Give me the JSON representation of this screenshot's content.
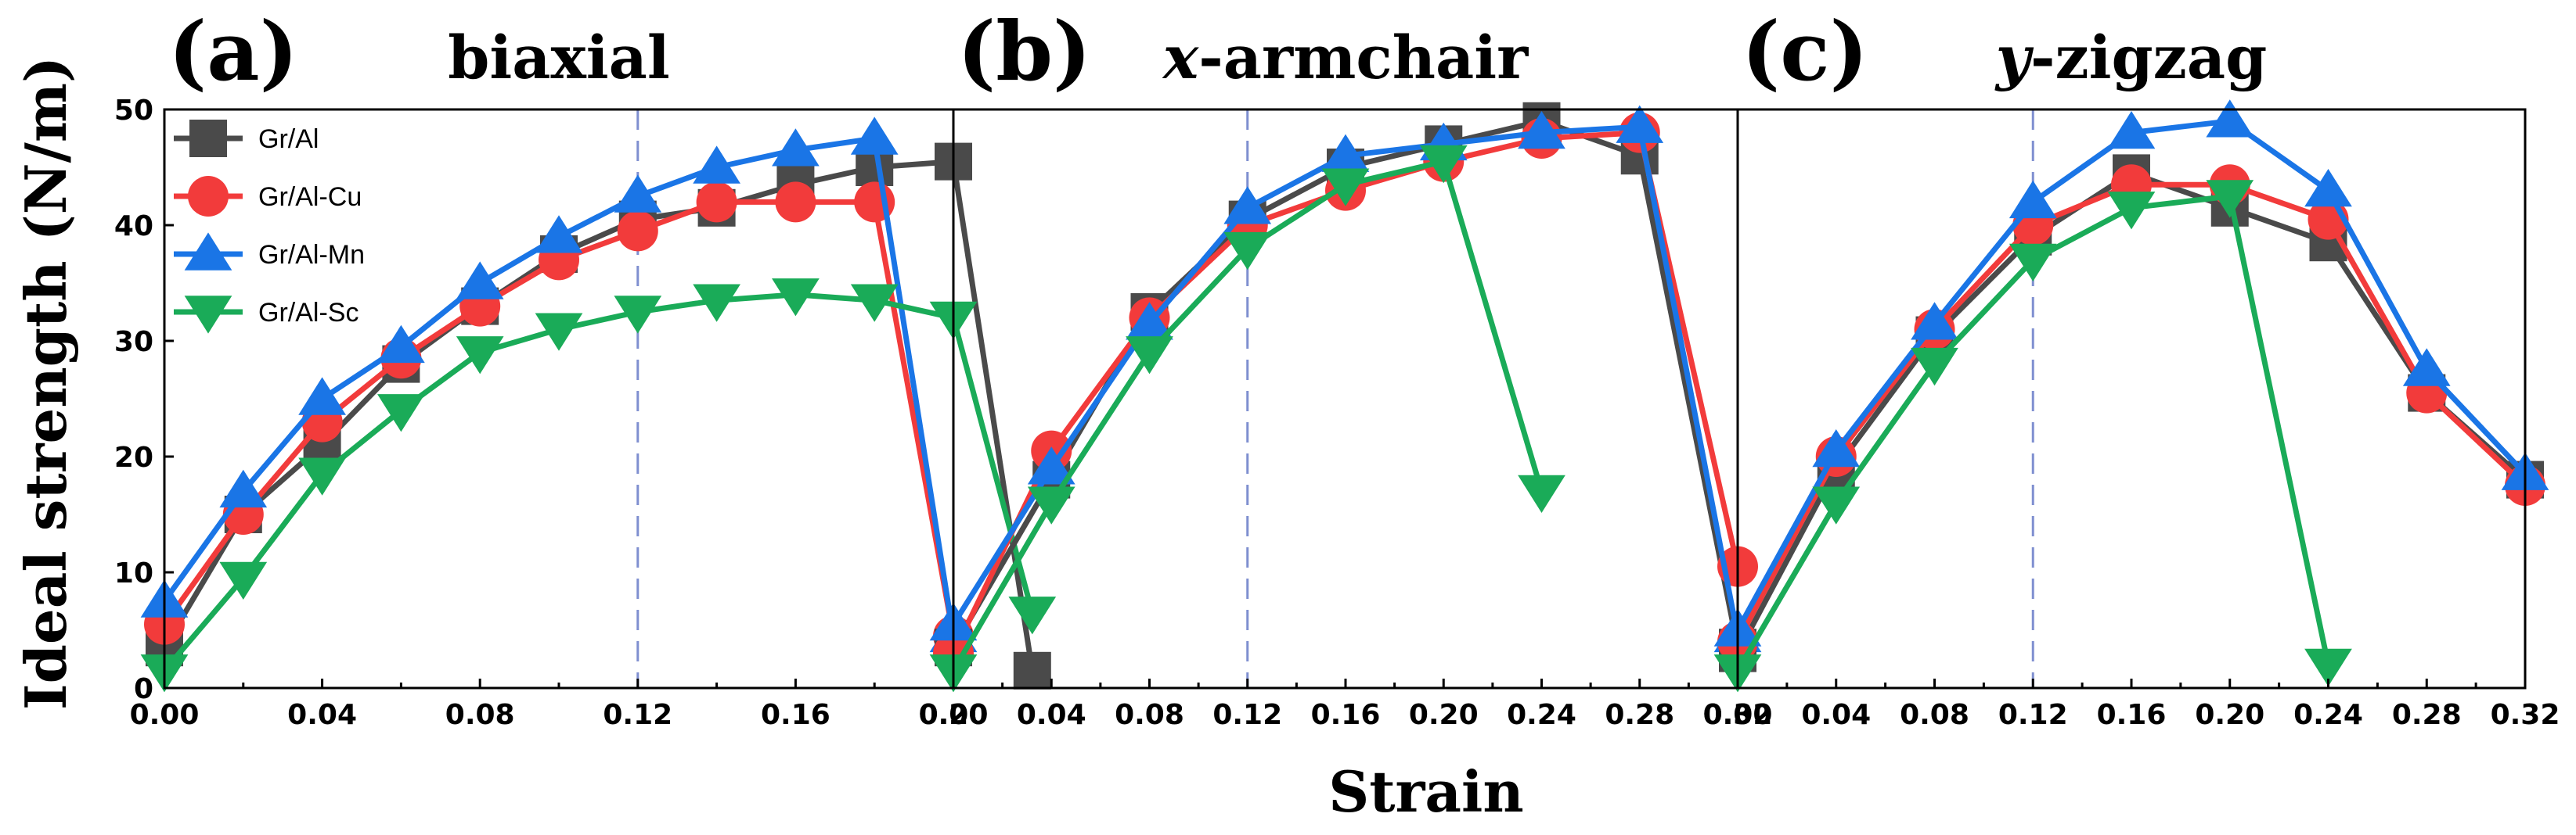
{
  "figure": {
    "ylabel": "Ideal strength (N/m)",
    "xlabel": "Strain",
    "legend_position": "top-left of panel (a)",
    "colors": {
      "Gr/Al": "#4a4a4a",
      "Gr/Al-Cu": "#f23b3b",
      "Gr/Al-Mn": "#1a75e6",
      "Gr/Al-Sc": "#1aab58",
      "refline": "#7f8fd0"
    }
  },
  "legend": [
    {
      "name": "Gr/Al",
      "marker": "square",
      "color": "#4a4a4a"
    },
    {
      "name": "Gr/Al-Cu",
      "marker": "circle",
      "color": "#f23b3b"
    },
    {
      "name": "Gr/Al-Mn",
      "marker": "triangle-up",
      "color": "#1a75e6"
    },
    {
      "name": "Gr/Al-Sc",
      "marker": "triangle-down",
      "color": "#1aab58"
    }
  ],
  "chart_data": [
    {
      "type": "line",
      "panel_letter": "(a)",
      "title_italic": "",
      "title_rest": "biaxial",
      "xlim": [
        0,
        0.2
      ],
      "ylim": [
        0,
        50
      ],
      "xticks": [
        "0.00",
        "0.04",
        "0.08",
        "0.12",
        "0.16",
        "0.20"
      ],
      "yticks": [
        "0",
        "10",
        "20",
        "30",
        "40",
        "50"
      ],
      "refline_x": 0.12,
      "series": [
        {
          "name": "Gr/Al",
          "x": [
            0,
            0.02,
            0.04,
            0.06,
            0.08,
            0.1,
            0.12,
            0.14,
            0.16,
            0.18,
            0.2,
            0.22
          ],
          "y": [
            3.5,
            15.0,
            21.0,
            28.0,
            33.0,
            37.5,
            40.5,
            41.5,
            43.5,
            45.0,
            45.5,
            1.5
          ]
        },
        {
          "name": "Gr/Al-Cu",
          "x": [
            0,
            0.02,
            0.04,
            0.06,
            0.08,
            0.1,
            0.12,
            0.14,
            0.16,
            0.18,
            0.2
          ],
          "y": [
            5.5,
            15.0,
            23.0,
            28.5,
            33.0,
            37.0,
            39.5,
            42.0,
            42.0,
            42.0,
            4.5
          ]
        },
        {
          "name": "Gr/Al-Mn",
          "x": [
            0,
            0.02,
            0.04,
            0.06,
            0.08,
            0.1,
            0.12,
            0.14,
            0.16,
            0.18,
            0.2
          ],
          "y": [
            7.5,
            17.0,
            25.0,
            29.5,
            35.0,
            39.0,
            42.5,
            45.0,
            46.5,
            47.5,
            4.5
          ]
        },
        {
          "name": "Gr/Al-Sc",
          "x": [
            0,
            0.02,
            0.04,
            0.06,
            0.08,
            0.1,
            0.12,
            0.14,
            0.16,
            0.18,
            0.2,
            0.22
          ],
          "y": [
            1.5,
            9.5,
            18.5,
            24.0,
            29.0,
            31.0,
            32.5,
            33.5,
            34.0,
            33.5,
            32.0,
            6.5
          ]
        }
      ]
    },
    {
      "type": "line",
      "panel_letter": "(b)",
      "title_italic": "x",
      "title_rest": "-armchair",
      "xlim": [
        0,
        0.32
      ],
      "ylim": [
        0,
        50
      ],
      "xticks": [
        "0.00",
        "0.04",
        "0.08",
        "0.12",
        "0.16",
        "0.20",
        "0.24",
        "0.28",
        "0.32"
      ],
      "yticks": [],
      "refline_x": 0.12,
      "series": [
        {
          "name": "Gr/Al",
          "x": [
            0,
            0.04,
            0.08,
            0.12,
            0.16,
            0.2,
            0.24,
            0.28,
            0.32
          ],
          "y": [
            3.5,
            18.0,
            32.5,
            40.5,
            45.0,
            47.0,
            49.0,
            46.0,
            3.5
          ]
        },
        {
          "name": "Gr/Al-Cu",
          "x": [
            0,
            0.04,
            0.08,
            0.12,
            0.16,
            0.2,
            0.24,
            0.28,
            0.32
          ],
          "y": [
            3.0,
            20.5,
            32.0,
            40.0,
            43.0,
            45.5,
            47.5,
            48.0,
            10.5
          ]
        },
        {
          "name": "Gr/Al-Mn",
          "x": [
            0,
            0.04,
            0.08,
            0.12,
            0.16,
            0.2,
            0.24,
            0.28,
            0.32
          ],
          "y": [
            5.5,
            19.0,
            31.5,
            41.5,
            46.0,
            47.0,
            48.0,
            48.5,
            4.5
          ]
        },
        {
          "name": "Gr/Al-Sc",
          "x": [
            0,
            0.04,
            0.08,
            0.12,
            0.16,
            0.2,
            0.24
          ],
          "y": [
            1.5,
            16.0,
            29.0,
            38.0,
            43.5,
            45.5,
            17.0
          ]
        }
      ]
    },
    {
      "type": "line",
      "panel_letter": "(c)",
      "title_italic": "y",
      "title_rest": "-zigzag",
      "xlim": [
        0,
        0.32
      ],
      "ylim": [
        0,
        50
      ],
      "xticks": [
        "0.00",
        "0.04",
        "0.08",
        "0.12",
        "0.16",
        "0.20",
        "0.24",
        "0.28",
        "0.32"
      ],
      "yticks": [],
      "refline_x": 0.12,
      "series": [
        {
          "name": "Gr/Al",
          "x": [
            0,
            0.04,
            0.08,
            0.12,
            0.16,
            0.2,
            0.24,
            0.28,
            0.32
          ],
          "y": [
            3.0,
            19.0,
            30.5,
            39.0,
            44.5,
            41.5,
            38.5,
            25.5,
            18.0
          ]
        },
        {
          "name": "Gr/Al-Cu",
          "x": [
            0,
            0.04,
            0.08,
            0.12,
            0.16,
            0.2,
            0.24,
            0.28,
            0.32
          ],
          "y": [
            4.0,
            20.0,
            31.0,
            40.0,
            43.5,
            43.5,
            40.5,
            25.5,
            17.5
          ]
        },
        {
          "name": "Gr/Al-Mn",
          "x": [
            0,
            0.04,
            0.08,
            0.12,
            0.16,
            0.2,
            0.24,
            0.28,
            0.32
          ],
          "y": [
            5.0,
            20.5,
            31.5,
            42.0,
            48.0,
            49.0,
            43.0,
            27.5,
            18.5
          ]
        },
        {
          "name": "Gr/Al-Sc",
          "x": [
            0,
            0.04,
            0.08,
            0.12,
            0.16,
            0.2,
            0.24
          ],
          "y": [
            1.5,
            16.0,
            28.0,
            37.0,
            41.5,
            42.5,
            2.0
          ]
        }
      ]
    }
  ]
}
